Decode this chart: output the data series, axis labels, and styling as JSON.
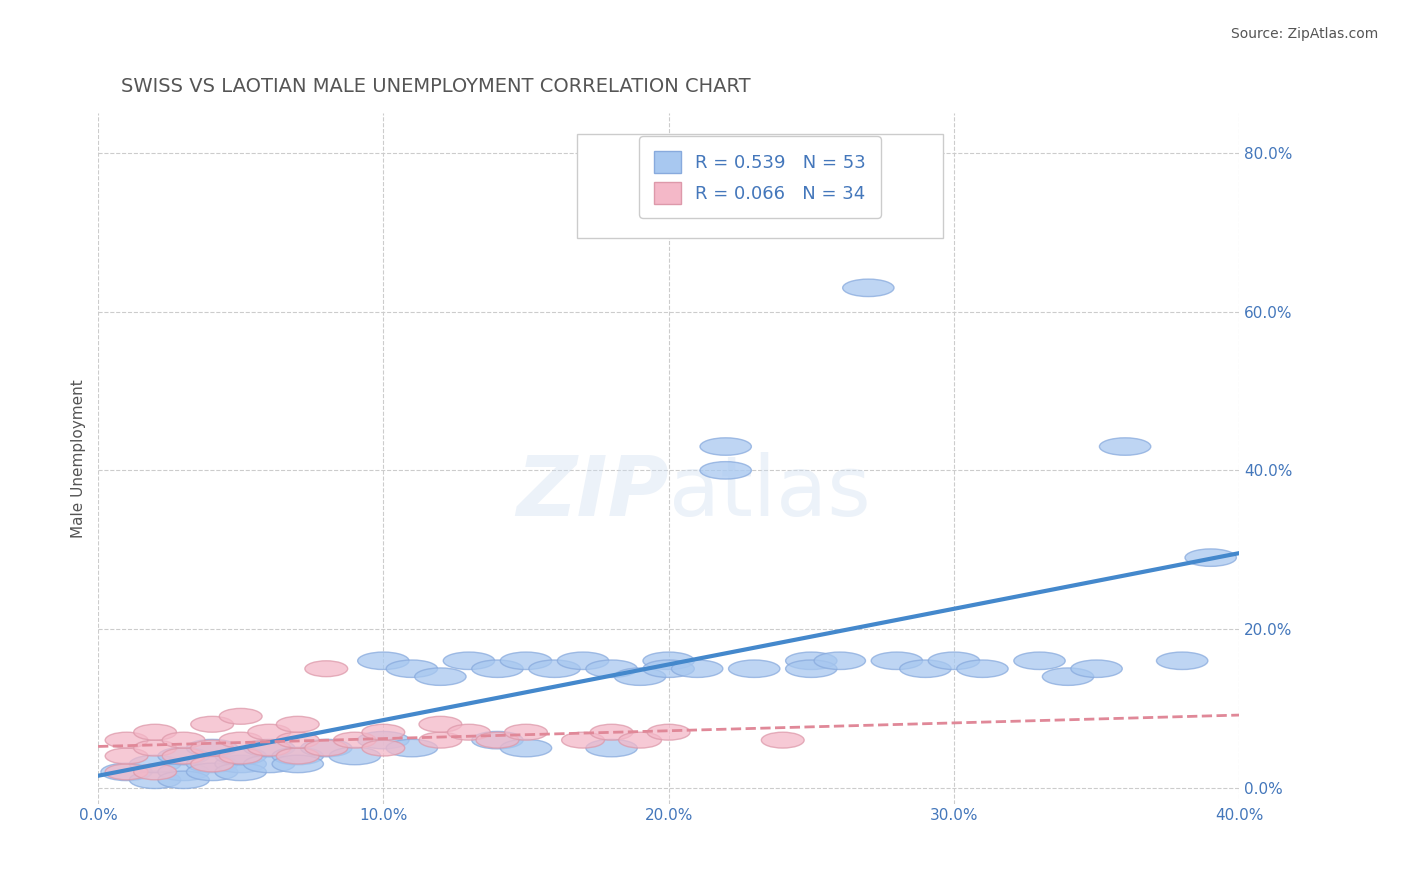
{
  "title": "SWISS VS LAOTIAN MALE UNEMPLOYMENT CORRELATION CHART",
  "source_text": "Source: ZipAtlas.com",
  "xlabel": "",
  "ylabel": "Male Unemployment",
  "xlim": [
    0.0,
    0.4
  ],
  "ylim": [
    -0.02,
    0.85
  ],
  "x_ticks": [
    0.0,
    0.1,
    0.2,
    0.3,
    0.4
  ],
  "x_tick_labels": [
    "0.0%",
    "10.0%",
    "20.0%",
    "30.0%",
    "40.0%"
  ],
  "y_ticks": [
    0.0,
    0.2,
    0.4,
    0.6,
    0.8
  ],
  "y_tick_labels": [
    "0.0%",
    "20.0%",
    "40.0%",
    "60.0%",
    "80.0%"
  ],
  "swiss_R": 0.539,
  "swiss_N": 53,
  "laotian_R": 0.066,
  "laotian_N": 34,
  "swiss_color": "#a8c8f0",
  "swiss_line_color": "#4488cc",
  "laotian_color": "#f4b8c8",
  "laotian_line_color": "#e08898",
  "legend_text_color": "#4477bb",
  "title_color": "#555555",
  "grid_color": "#cccccc",
  "watermark": "ZIPatlas",
  "swiss_scatter_x": [
    0.01,
    0.02,
    0.02,
    0.03,
    0.03,
    0.03,
    0.04,
    0.04,
    0.04,
    0.05,
    0.05,
    0.05,
    0.06,
    0.06,
    0.07,
    0.07,
    0.08,
    0.09,
    0.1,
    0.1,
    0.11,
    0.11,
    0.12,
    0.13,
    0.14,
    0.14,
    0.15,
    0.15,
    0.16,
    0.17,
    0.18,
    0.18,
    0.19,
    0.2,
    0.2,
    0.21,
    0.22,
    0.22,
    0.23,
    0.25,
    0.25,
    0.26,
    0.27,
    0.28,
    0.29,
    0.3,
    0.31,
    0.33,
    0.34,
    0.35,
    0.36,
    0.38,
    0.39
  ],
  "swiss_scatter_y": [
    0.02,
    0.01,
    0.03,
    0.02,
    0.04,
    0.01,
    0.03,
    0.02,
    0.05,
    0.03,
    0.02,
    0.04,
    0.03,
    0.05,
    0.04,
    0.03,
    0.05,
    0.04,
    0.16,
    0.06,
    0.15,
    0.05,
    0.14,
    0.16,
    0.15,
    0.06,
    0.16,
    0.05,
    0.15,
    0.16,
    0.15,
    0.05,
    0.14,
    0.16,
    0.15,
    0.15,
    0.43,
    0.4,
    0.15,
    0.16,
    0.15,
    0.16,
    0.63,
    0.16,
    0.15,
    0.16,
    0.15,
    0.16,
    0.14,
    0.15,
    0.43,
    0.16,
    0.29
  ],
  "laotian_scatter_x": [
    0.01,
    0.01,
    0.01,
    0.02,
    0.02,
    0.02,
    0.03,
    0.03,
    0.04,
    0.04,
    0.04,
    0.05,
    0.05,
    0.05,
    0.06,
    0.06,
    0.07,
    0.07,
    0.07,
    0.08,
    0.08,
    0.09,
    0.1,
    0.1,
    0.12,
    0.12,
    0.13,
    0.14,
    0.15,
    0.17,
    0.18,
    0.19,
    0.2,
    0.24
  ],
  "laotian_scatter_y": [
    0.02,
    0.04,
    0.06,
    0.02,
    0.05,
    0.07,
    0.04,
    0.06,
    0.03,
    0.05,
    0.08,
    0.04,
    0.06,
    0.09,
    0.05,
    0.07,
    0.04,
    0.06,
    0.08,
    0.05,
    0.15,
    0.06,
    0.05,
    0.07,
    0.06,
    0.08,
    0.07,
    0.06,
    0.07,
    0.06,
    0.07,
    0.06,
    0.07,
    0.06
  ]
}
